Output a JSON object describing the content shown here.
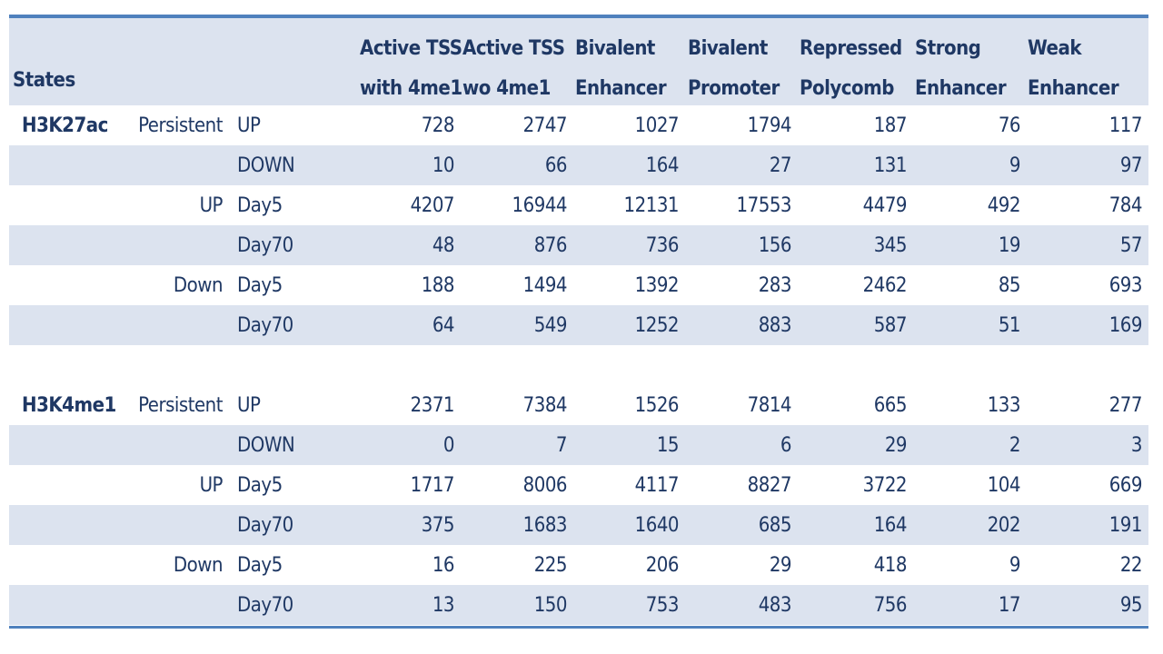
{
  "header": {
    "states": "States",
    "columns": [
      [
        "Active TSS",
        "with 4me1"
      ],
      [
        "Active TSS",
        "wo 4me1"
      ],
      [
        "Bivalent",
        "Enhancer"
      ],
      [
        "Bivalent",
        "Promoter"
      ],
      [
        "Repressed",
        "Polycomb"
      ],
      [
        "Strong",
        "Enhancer"
      ],
      [
        "Weak",
        "Enhancer"
      ]
    ]
  },
  "sections": [
    {
      "mark": "H3K27ac",
      "rows": [
        {
          "group": "Persistent",
          "sub": "UP",
          "values": [
            "728",
            "2747",
            "1027",
            "1794",
            "187",
            "76",
            "117"
          ]
        },
        {
          "group": "",
          "sub": "DOWN",
          "values": [
            "10",
            "66",
            "164",
            "27",
            "131",
            "9",
            "97"
          ]
        },
        {
          "group": "UP",
          "sub": "Day5",
          "values": [
            "4207",
            "16944",
            "12131",
            "17553",
            "4479",
            "492",
            "784"
          ]
        },
        {
          "group": "",
          "sub": "Day70",
          "values": [
            "48",
            "876",
            "736",
            "156",
            "345",
            "19",
            "57"
          ]
        },
        {
          "group": "Down",
          "sub": "Day5",
          "values": [
            "188",
            "1494",
            "1392",
            "283",
            "2462",
            "85",
            "693"
          ]
        },
        {
          "group": "",
          "sub": "Day70",
          "values": [
            "64",
            "549",
            "1252",
            "883",
            "587",
            "51",
            "169"
          ]
        }
      ]
    },
    {
      "mark": "H3K4me1",
      "rows": [
        {
          "group": "Persistent",
          "sub": "UP",
          "values": [
            "2371",
            "7384",
            "1526",
            "7814",
            "665",
            "133",
            "277"
          ]
        },
        {
          "group": "",
          "sub": "DOWN",
          "values": [
            "0",
            "7",
            "15",
            "6",
            "29",
            "2",
            "3"
          ]
        },
        {
          "group": "UP",
          "sub": "Day5",
          "values": [
            "1717",
            "8006",
            "4117",
            "8827",
            "3722",
            "104",
            "669"
          ]
        },
        {
          "group": "",
          "sub": "Day70",
          "values": [
            "375",
            "1683",
            "1640",
            "685",
            "164",
            "202",
            "191"
          ]
        },
        {
          "group": "Down",
          "sub": "Day5",
          "values": [
            "16",
            "225",
            "206",
            "29",
            "418",
            "9",
            "22"
          ]
        },
        {
          "group": "",
          "sub": "Day70",
          "values": [
            "13",
            "150",
            "753",
            "483",
            "756",
            "17",
            "95"
          ]
        }
      ]
    }
  ]
}
